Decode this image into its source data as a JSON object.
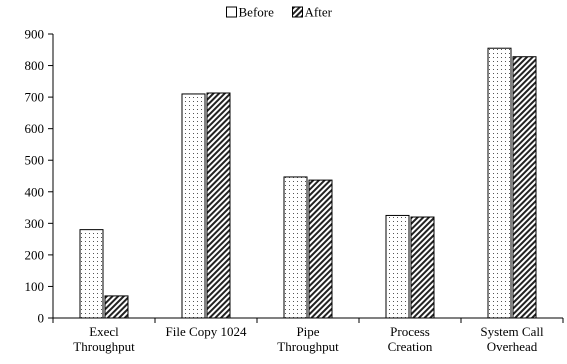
{
  "chart_data": {
    "type": "bar",
    "categories": [
      [
        "Execl",
        "Throughput"
      ],
      [
        "File Copy 1024"
      ],
      [
        "Pipe",
        "Throughput"
      ],
      [
        "Process",
        "Creation"
      ],
      [
        "System Call",
        "Overhead"
      ]
    ],
    "series": [
      {
        "name": "Before",
        "pattern": "dots",
        "values": [
          280,
          710,
          447,
          325,
          855
        ]
      },
      {
        "name": "After",
        "pattern": "hatch",
        "values": [
          70,
          713,
          437,
          320,
          828
        ]
      }
    ],
    "ylim": [
      0,
      900
    ],
    "yticks": [
      0,
      100,
      200,
      300,
      400,
      500,
      600,
      700,
      800,
      900
    ],
    "grid": false,
    "legend_position": "top-center",
    "colors": {
      "bar_stroke": "#000000",
      "pattern_fill": "#555555",
      "background": "#ffffff"
    }
  }
}
